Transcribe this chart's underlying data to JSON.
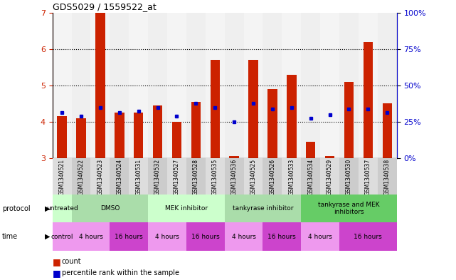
{
  "title": "GDS5029 / 1559522_at",
  "samples": [
    "GSM1340521",
    "GSM1340522",
    "GSM1340523",
    "GSM1340524",
    "GSM1340531",
    "GSM1340532",
    "GSM1340527",
    "GSM1340528",
    "GSM1340535",
    "GSM1340536",
    "GSM1340525",
    "GSM1340526",
    "GSM1340533",
    "GSM1340534",
    "GSM1340529",
    "GSM1340530",
    "GSM1340537",
    "GSM1340538"
  ],
  "red_values": [
    4.15,
    4.1,
    7.0,
    4.25,
    4.25,
    4.45,
    4.0,
    4.55,
    5.7,
    3.05,
    5.7,
    4.9,
    5.3,
    3.45,
    3.05,
    5.1,
    6.2,
    4.5
  ],
  "blue_values": [
    4.25,
    4.15,
    4.4,
    4.25,
    4.3,
    4.4,
    4.15,
    4.5,
    4.4,
    4.0,
    4.5,
    4.35,
    4.4,
    4.1,
    4.2,
    4.35,
    4.35,
    4.25
  ],
  "ylim_left": [
    3.0,
    7.0
  ],
  "ylim_right": [
    0,
    100
  ],
  "yticks_left": [
    3,
    4,
    5,
    6,
    7
  ],
  "yticks_right": [
    0,
    25,
    50,
    75,
    100
  ],
  "bar_color": "#cc2200",
  "dot_color": "#0000cc",
  "background_color": "#ffffff",
  "protocol_row": [
    {
      "label": "untreated",
      "start": 0,
      "end": 1,
      "color": "#ccffcc"
    },
    {
      "label": "DMSO",
      "start": 1,
      "end": 5,
      "color": "#aaddaa"
    },
    {
      "label": "MEK inhibitor",
      "start": 5,
      "end": 9,
      "color": "#ccffcc"
    },
    {
      "label": "tankyrase inhibitor",
      "start": 9,
      "end": 13,
      "color": "#aaddaa"
    },
    {
      "label": "tankyrase and MEK\ninhibitors",
      "start": 13,
      "end": 18,
      "color": "#66cc66"
    }
  ],
  "time_row": [
    {
      "label": "control",
      "start": 0,
      "end": 1,
      "color": "#ee99ee"
    },
    {
      "label": "4 hours",
      "start": 1,
      "end": 3,
      "color": "#ee99ee"
    },
    {
      "label": "16 hours",
      "start": 3,
      "end": 5,
      "color": "#cc44cc"
    },
    {
      "label": "4 hours",
      "start": 5,
      "end": 7,
      "color": "#ee99ee"
    },
    {
      "label": "16 hours",
      "start": 7,
      "end": 9,
      "color": "#cc44cc"
    },
    {
      "label": "4 hours",
      "start": 9,
      "end": 11,
      "color": "#ee99ee"
    },
    {
      "label": "16 hours",
      "start": 11,
      "end": 13,
      "color": "#cc44cc"
    },
    {
      "label": "4 hours",
      "start": 13,
      "end": 15,
      "color": "#ee99ee"
    },
    {
      "label": "16 hours",
      "start": 15,
      "end": 18,
      "color": "#cc44cc"
    }
  ],
  "bar_width": 0.5,
  "right_axis_color": "#0000cc",
  "left_axis_color": "#cc2200",
  "col_colors": [
    "#dddddd",
    "#cccccc"
  ]
}
